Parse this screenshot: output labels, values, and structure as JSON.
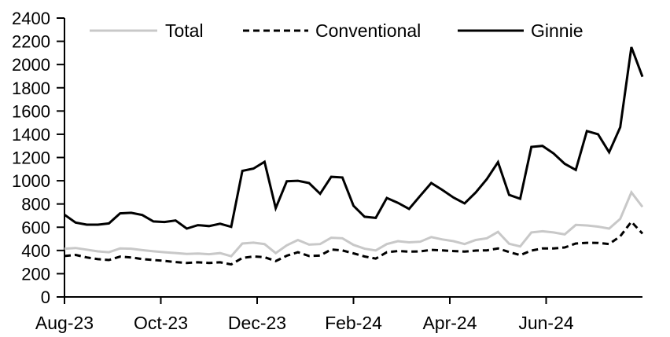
{
  "chart_data": {
    "type": "line",
    "title": "",
    "xlabel": "",
    "ylabel": "",
    "grid": false,
    "frequency": "weekly",
    "x_axis": {
      "tick_labels": [
        "Aug-23",
        "Oct-23",
        "Dec-23",
        "Feb-24",
        "Apr-24",
        "Jun-24"
      ],
      "tick_month_positions": [
        0,
        2,
        4,
        6,
        8,
        10
      ],
      "months_span": 12
    },
    "y_axis": {
      "min": 0,
      "max": 2400,
      "tick_step": 200,
      "tick_labels": [
        "0",
        "200",
        "400",
        "600",
        "800",
        "1000",
        "1200",
        "1400",
        "1600",
        "1800",
        "2000",
        "2200",
        "2400"
      ]
    },
    "legend": {
      "position": "top",
      "entries": [
        "Total",
        "Conventional",
        "Ginnie"
      ]
    },
    "colors": {
      "total": "#c8c8c8",
      "conventional": "#000000",
      "ginnie": "#000000",
      "axis": "#000000",
      "text": "#000000"
    },
    "series": [
      {
        "name": "Total",
        "color": "#c8c8c8",
        "style": "solid",
        "values": [
          415,
          421,
          407,
          392,
          385,
          418,
          415,
          403,
          393,
          385,
          378,
          370,
          374,
          368,
          377,
          350,
          460,
          467,
          455,
          377,
          444,
          490,
          450,
          455,
          510,
          505,
          448,
          415,
          400,
          455,
          480,
          470,
          475,
          515,
          495,
          480,
          455,
          490,
          505,
          560,
          458,
          435,
          555,
          565,
          555,
          538,
          620,
          615,
          605,
          588,
          672,
          900,
          775
        ]
      },
      {
        "name": "Conventional",
        "color": "#000000",
        "style": "dashed",
        "values": [
          352,
          362,
          340,
          325,
          318,
          347,
          340,
          326,
          318,
          310,
          300,
          293,
          298,
          293,
          298,
          280,
          335,
          348,
          342,
          308,
          355,
          385,
          352,
          356,
          408,
          400,
          375,
          348,
          330,
          385,
          395,
          390,
          392,
          405,
          400,
          395,
          390,
          399,
          401,
          417,
          387,
          360,
          399,
          417,
          417,
          426,
          460,
          466,
          465,
          455,
          522,
          647,
          545
        ]
      },
      {
        "name": "Ginnie",
        "color": "#000000",
        "style": "solid",
        "values": [
          708,
          640,
          622,
          622,
          633,
          719,
          724,
          705,
          650,
          645,
          658,
          588,
          618,
          610,
          630,
          603,
          1085,
          1105,
          1163,
          764,
          996,
          1000,
          980,
          888,
          1034,
          1028,
          785,
          690,
          680,
          852,
          810,
          757,
          870,
          980,
          920,
          855,
          805,
          899,
          1014,
          1160,
          878,
          845,
          1291,
          1300,
          1235,
          1146,
          1093,
          1428,
          1400,
          1245,
          1460,
          2150,
          1895
        ]
      }
    ]
  }
}
